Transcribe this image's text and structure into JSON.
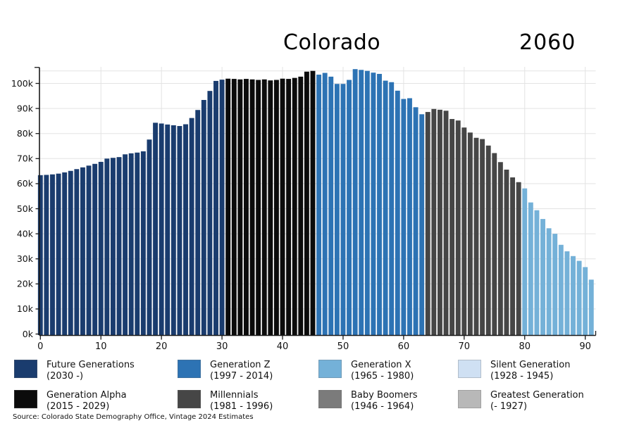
{
  "chart_data": {
    "type": "bar",
    "title": "Colorado",
    "year": "2060",
    "x_axis": "age (years)",
    "ages_start": 0,
    "ages_end": 91,
    "y_unit": "k",
    "values_k": [
      63.4,
      63.5,
      63.7,
      64.0,
      64.5,
      65.1,
      65.8,
      66.5,
      67.2,
      67.9,
      68.7,
      70.0,
      70.3,
      70.6,
      71.7,
      72.1,
      72.4,
      72.9,
      77.6,
      84.3,
      84.0,
      83.6,
      83.3,
      83.0,
      83.7,
      86.2,
      89.4,
      93.4,
      97.0,
      101.0,
      101.5,
      101.9,
      101.8,
      101.6,
      101.8,
      101.6,
      101.4,
      101.6,
      101.2,
      101.4,
      101.9,
      101.8,
      102.2,
      102.7,
      104.7,
      105.0,
      103.5,
      104.2,
      102.7,
      99.8,
      99.8,
      101.4,
      105.7,
      105.4,
      105.0,
      104.3,
      103.8,
      101.1,
      100.5,
      97.1,
      93.8,
      94.1,
      90.5,
      87.7,
      88.6,
      89.8,
      89.5,
      89.1,
      85.8,
      85.2,
      82.4,
      80.4,
      78.3,
      77.8,
      75.2,
      72.2,
      68.6,
      65.6,
      62.5,
      60.6,
      58.1,
      52.5,
      49.4,
      45.9,
      42.2,
      40.0,
      35.6,
      33.0,
      31.1,
      29.2,
      26.7,
      21.7
    ],
    "x_ticks": [
      0,
      10,
      20,
      30,
      40,
      50,
      60,
      70,
      80,
      90
    ],
    "y_tick_labels": [
      "0k",
      "10k",
      "20k",
      "30k",
      "40k",
      "50k",
      "60k",
      "70k",
      "80k",
      "90k",
      "100k"
    ],
    "y_grid_k": [
      10,
      20,
      30,
      40,
      50,
      60,
      70,
      80,
      90,
      100,
      105
    ],
    "ylim_k": [
      0,
      106.5
    ],
    "grid": true,
    "legend_position": "bottom"
  },
  "legend": {
    "items": [
      {
        "name": "Future Generations",
        "years": "(2030 -)",
        "color": "#1a3c6e",
        "age_from": 0,
        "age_to": 30
      },
      {
        "name": "Generation Z",
        "years": "(1997 - 2014)",
        "color": "#2d73b4",
        "age_from": 46,
        "age_to": 63
      },
      {
        "name": "Generation X",
        "years": "(1965 - 1980)",
        "color": "#74b1d8",
        "age_from": 80,
        "age_to": 91
      },
      {
        "name": "Silent Generation",
        "years": "(1928 - 1945)",
        "color": "#cfe0f3",
        "age_from": null,
        "age_to": null
      },
      {
        "name": "Generation Alpha",
        "years": "(2015 - 2029)",
        "color": "#0b0b0b",
        "age_from": 31,
        "age_to": 45
      },
      {
        "name": "Millennials",
        "years": "(1981 - 1996)",
        "color": "#464646",
        "age_from": 64,
        "age_to": 79
      },
      {
        "name": "Baby Boomers",
        "years": "(1946 - 1964)",
        "color": "#7b7b7b",
        "age_from": null,
        "age_to": null
      },
      {
        "name": "Greatest Generation",
        "years": "(- 1927)",
        "color": "#b8b8b8",
        "age_from": null,
        "age_to": null
      }
    ]
  },
  "source": "Source: Colorado State Demography Office, Vintage 2024 Estimates"
}
